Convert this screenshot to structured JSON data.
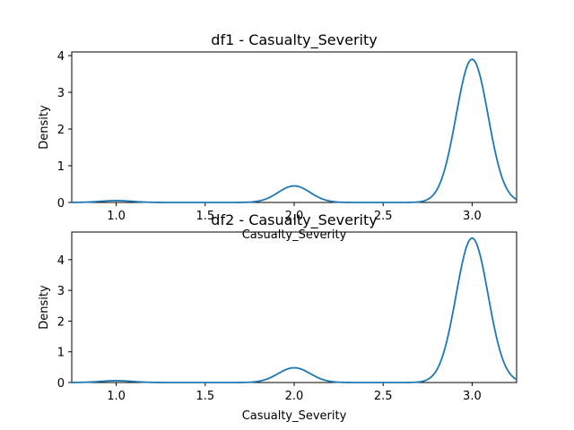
{
  "chart_data": [
    {
      "type": "line",
      "title": "df1 - Casualty_Severity",
      "xlabel": "Casualty_Severity",
      "ylabel": "Density",
      "xlim": [
        0.75,
        3.25
      ],
      "ylim": [
        0,
        4.1
      ],
      "xticks": [
        1.0,
        1.5,
        2.0,
        2.5,
        3.0
      ],
      "xtick_labels": [
        "1.0",
        "1.5",
        "2.0",
        "2.5",
        "3.0"
      ],
      "yticks": [
        0,
        1,
        2,
        3,
        4
      ],
      "ytick_labels": [
        "0",
        "1",
        "2",
        "3",
        "4"
      ],
      "grid": false,
      "color": "#1f77b4",
      "series": [
        {
          "peaks": [
            {
              "x": 1.0,
              "height": 0.05
            },
            {
              "x": 2.0,
              "height": 0.45
            },
            {
              "x": 3.0,
              "height": 3.9
            }
          ]
        }
      ]
    },
    {
      "type": "line",
      "title": "df2 - Casualty_Severity",
      "xlabel": "Casualty_Severity",
      "ylabel": "Density",
      "xlim": [
        0.75,
        3.25
      ],
      "ylim": [
        0,
        4.9
      ],
      "xticks": [
        1.0,
        1.5,
        2.0,
        2.5,
        3.0
      ],
      "xtick_labels": [
        "1.0",
        "1.5",
        "2.0",
        "2.5",
        "3.0"
      ],
      "yticks": [
        0,
        1,
        2,
        3,
        4
      ],
      "ytick_labels": [
        "0",
        "1",
        "2",
        "3",
        "4"
      ],
      "grid": false,
      "color": "#1f77b4",
      "series": [
        {
          "peaks": [
            {
              "x": 1.0,
              "height": 0.06
            },
            {
              "x": 2.0,
              "height": 0.48
            },
            {
              "x": 3.0,
              "height": 4.7
            }
          ]
        }
      ]
    }
  ]
}
